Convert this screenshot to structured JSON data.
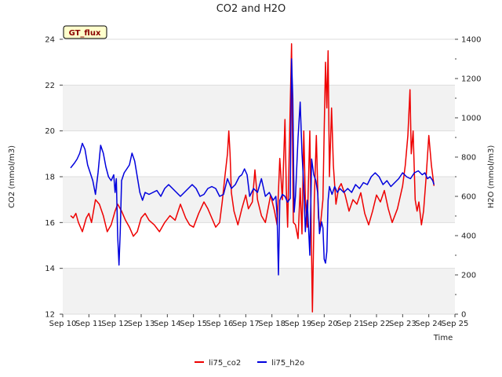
{
  "chart_data": {
    "type": "line",
    "title": "CO2 and H2O",
    "badge": "GT_flux",
    "xlabel": "Time",
    "ylabel_left": "CO2 (mmol/m3)",
    "ylabel_right": "H2O (mmol/m3)",
    "x_tick_labels": [
      "Sep 10",
      "Sep 11",
      "Sep 12",
      "Sep 13",
      "Sep 14",
      "Sep 15",
      "Sep 16",
      "Sep 17",
      "Sep 18",
      "Sep 19",
      "Sep 20",
      "Sep 21",
      "Sep 22",
      "Sep 23",
      "Sep 24",
      "Sep 25"
    ],
    "xlim": [
      10,
      25
    ],
    "ylim_left": [
      12,
      24
    ],
    "ylim_right": [
      0,
      1400
    ],
    "left_ticks": [
      12,
      14,
      16,
      18,
      20,
      22,
      24
    ],
    "right_ticks": [
      0,
      200,
      400,
      600,
      800,
      1000,
      1200,
      1400
    ],
    "grid": true,
    "legend_position": "bottom-center",
    "series": [
      {
        "name": "li75_co2",
        "color": "#ee0000",
        "axis": "left",
        "points": [
          [
            10.3,
            16.3
          ],
          [
            10.4,
            16.2
          ],
          [
            10.5,
            16.4
          ],
          [
            10.6,
            16.0
          ],
          [
            10.75,
            15.6
          ],
          [
            10.9,
            16.2
          ],
          [
            11.0,
            16.4
          ],
          [
            11.1,
            16.0
          ],
          [
            11.25,
            17.0
          ],
          [
            11.4,
            16.8
          ],
          [
            11.55,
            16.3
          ],
          [
            11.7,
            15.6
          ],
          [
            11.85,
            15.9
          ],
          [
            12.0,
            16.5
          ],
          [
            12.1,
            16.8
          ],
          [
            12.25,
            16.5
          ],
          [
            12.4,
            16.1
          ],
          [
            12.55,
            15.8
          ],
          [
            12.7,
            15.4
          ],
          [
            12.85,
            15.6
          ],
          [
            13.0,
            16.2
          ],
          [
            13.15,
            16.4
          ],
          [
            13.3,
            16.1
          ],
          [
            13.5,
            15.9
          ],
          [
            13.7,
            15.6
          ],
          [
            13.9,
            16.0
          ],
          [
            14.1,
            16.3
          ],
          [
            14.3,
            16.1
          ],
          [
            14.5,
            16.8
          ],
          [
            14.7,
            16.2
          ],
          [
            14.85,
            15.9
          ],
          [
            15.0,
            15.8
          ],
          [
            15.2,
            16.4
          ],
          [
            15.4,
            16.9
          ],
          [
            15.55,
            16.6
          ],
          [
            15.7,
            16.2
          ],
          [
            15.85,
            15.8
          ],
          [
            16.0,
            16.0
          ],
          [
            16.1,
            16.9
          ],
          [
            16.2,
            18.0
          ],
          [
            16.3,
            19.0
          ],
          [
            16.35,
            20.0
          ],
          [
            16.4,
            19.0
          ],
          [
            16.45,
            17.3
          ],
          [
            16.55,
            16.5
          ],
          [
            16.7,
            15.9
          ],
          [
            16.85,
            16.6
          ],
          [
            17.0,
            17.2
          ],
          [
            17.1,
            16.6
          ],
          [
            17.25,
            16.9
          ],
          [
            17.35,
            18.3
          ],
          [
            17.45,
            17.0
          ],
          [
            17.6,
            16.3
          ],
          [
            17.75,
            16.0
          ],
          [
            17.85,
            16.6
          ],
          [
            17.95,
            17.2
          ],
          [
            18.1,
            16.5
          ],
          [
            18.2,
            15.9
          ],
          [
            18.3,
            18.8
          ],
          [
            18.4,
            17.0
          ],
          [
            18.5,
            20.5
          ],
          [
            18.55,
            17.5
          ],
          [
            18.6,
            15.8
          ],
          [
            18.75,
            23.8
          ],
          [
            18.82,
            16.0
          ],
          [
            18.9,
            15.9
          ],
          [
            19.0,
            15.3
          ],
          [
            19.08,
            17.5
          ],
          [
            19.15,
            15.5
          ],
          [
            19.22,
            20.0
          ],
          [
            19.28,
            17.0
          ],
          [
            19.35,
            15.8
          ],
          [
            19.45,
            20.0
          ],
          [
            19.55,
            12.1
          ],
          [
            19.62,
            17.0
          ],
          [
            19.7,
            19.8
          ],
          [
            19.78,
            16.2
          ],
          [
            19.85,
            15.8
          ],
          [
            19.95,
            17.0
          ],
          [
            20.0,
            20.0
          ],
          [
            20.05,
            23.0
          ],
          [
            20.1,
            21.0
          ],
          [
            20.15,
            23.5
          ],
          [
            20.2,
            18.0
          ],
          [
            20.28,
            21.0
          ],
          [
            20.35,
            18.5
          ],
          [
            20.45,
            16.8
          ],
          [
            20.55,
            17.5
          ],
          [
            20.65,
            17.7
          ],
          [
            20.8,
            17.2
          ],
          [
            20.95,
            16.5
          ],
          [
            21.1,
            17.0
          ],
          [
            21.25,
            16.8
          ],
          [
            21.4,
            17.3
          ],
          [
            21.55,
            16.4
          ],
          [
            21.7,
            15.9
          ],
          [
            21.85,
            16.5
          ],
          [
            22.0,
            17.2
          ],
          [
            22.15,
            16.9
          ],
          [
            22.3,
            17.4
          ],
          [
            22.45,
            16.6
          ],
          [
            22.6,
            16.0
          ],
          [
            22.8,
            16.6
          ],
          [
            23.0,
            17.6
          ],
          [
            23.1,
            18.5
          ],
          [
            23.2,
            19.8
          ],
          [
            23.28,
            21.8
          ],
          [
            23.33,
            19.0
          ],
          [
            23.4,
            20.0
          ],
          [
            23.48,
            17.0
          ],
          [
            23.55,
            16.5
          ],
          [
            23.62,
            16.9
          ],
          [
            23.72,
            15.9
          ],
          [
            23.8,
            16.5
          ],
          [
            23.9,
            18.0
          ],
          [
            24.0,
            19.8
          ],
          [
            24.1,
            18.5
          ],
          [
            24.2,
            17.6
          ]
        ]
      },
      {
        "name": "li75_h2o",
        "color": "#0000dd",
        "axis": "right",
        "points": [
          [
            10.3,
            745
          ],
          [
            10.45,
            770
          ],
          [
            10.55,
            790
          ],
          [
            10.65,
            820
          ],
          [
            10.75,
            870
          ],
          [
            10.85,
            840
          ],
          [
            10.95,
            760
          ],
          [
            11.05,
            720
          ],
          [
            11.15,
            680
          ],
          [
            11.25,
            610
          ],
          [
            11.35,
            720
          ],
          [
            11.45,
            860
          ],
          [
            11.55,
            820
          ],
          [
            11.65,
            750
          ],
          [
            11.75,
            700
          ],
          [
            11.85,
            680
          ],
          [
            11.95,
            710
          ],
          [
            12.0,
            620
          ],
          [
            12.05,
            690
          ],
          [
            12.1,
            400
          ],
          [
            12.15,
            250
          ],
          [
            12.2,
            420
          ],
          [
            12.25,
            680
          ],
          [
            12.35,
            720
          ],
          [
            12.45,
            740
          ],
          [
            12.55,
            760
          ],
          [
            12.65,
            820
          ],
          [
            12.75,
            780
          ],
          [
            12.85,
            700
          ],
          [
            12.95,
            620
          ],
          [
            13.05,
            580
          ],
          [
            13.15,
            620
          ],
          [
            13.3,
            610
          ],
          [
            13.45,
            620
          ],
          [
            13.6,
            630
          ],
          [
            13.75,
            600
          ],
          [
            13.9,
            640
          ],
          [
            14.05,
            660
          ],
          [
            14.2,
            640
          ],
          [
            14.35,
            620
          ],
          [
            14.5,
            600
          ],
          [
            14.65,
            620
          ],
          [
            14.8,
            640
          ],
          [
            14.95,
            660
          ],
          [
            15.1,
            640
          ],
          [
            15.25,
            600
          ],
          [
            15.4,
            610
          ],
          [
            15.55,
            640
          ],
          [
            15.7,
            650
          ],
          [
            15.85,
            640
          ],
          [
            16.0,
            600
          ],
          [
            16.15,
            610
          ],
          [
            16.3,
            690
          ],
          [
            16.45,
            640
          ],
          [
            16.6,
            660
          ],
          [
            16.75,
            700
          ],
          [
            16.85,
            710
          ],
          [
            16.95,
            740
          ],
          [
            17.05,
            710
          ],
          [
            17.15,
            600
          ],
          [
            17.3,
            640
          ],
          [
            17.45,
            620
          ],
          [
            17.6,
            690
          ],
          [
            17.75,
            600
          ],
          [
            17.9,
            620
          ],
          [
            18.05,
            580
          ],
          [
            18.15,
            600
          ],
          [
            18.2,
            500
          ],
          [
            18.25,
            200
          ],
          [
            18.3,
            580
          ],
          [
            18.4,
            610
          ],
          [
            18.5,
            600
          ],
          [
            18.6,
            570
          ],
          [
            18.7,
            590
          ],
          [
            18.75,
            1300
          ],
          [
            18.8,
            1100
          ],
          [
            18.85,
            520
          ],
          [
            18.9,
            600
          ],
          [
            19.0,
            900
          ],
          [
            19.08,
            1080
          ],
          [
            19.15,
            820
          ],
          [
            19.22,
            650
          ],
          [
            19.28,
            420
          ],
          [
            19.35,
            580
          ],
          [
            19.45,
            300
          ],
          [
            19.52,
            790
          ],
          [
            19.6,
            710
          ],
          [
            19.68,
            680
          ],
          [
            19.75,
            620
          ],
          [
            19.82,
            410
          ],
          [
            19.9,
            470
          ],
          [
            19.95,
            440
          ],
          [
            20.0,
            280
          ],
          [
            20.05,
            260
          ],
          [
            20.1,
            320
          ],
          [
            20.15,
            580
          ],
          [
            20.2,
            650
          ],
          [
            20.3,
            610
          ],
          [
            20.4,
            650
          ],
          [
            20.5,
            620
          ],
          [
            20.6,
            640
          ],
          [
            20.75,
            620
          ],
          [
            20.9,
            640
          ],
          [
            21.05,
            620
          ],
          [
            21.2,
            660
          ],
          [
            21.35,
            640
          ],
          [
            21.5,
            670
          ],
          [
            21.65,
            660
          ],
          [
            21.8,
            700
          ],
          [
            21.95,
            720
          ],
          [
            22.1,
            700
          ],
          [
            22.25,
            660
          ],
          [
            22.4,
            680
          ],
          [
            22.55,
            650
          ],
          [
            22.7,
            670
          ],
          [
            22.85,
            690
          ],
          [
            23.0,
            720
          ],
          [
            23.15,
            700
          ],
          [
            23.3,
            690
          ],
          [
            23.45,
            720
          ],
          [
            23.6,
            730
          ],
          [
            23.75,
            710
          ],
          [
            23.85,
            720
          ],
          [
            23.95,
            690
          ],
          [
            24.05,
            700
          ],
          [
            24.15,
            680
          ],
          [
            24.2,
            660
          ]
        ]
      }
    ]
  }
}
